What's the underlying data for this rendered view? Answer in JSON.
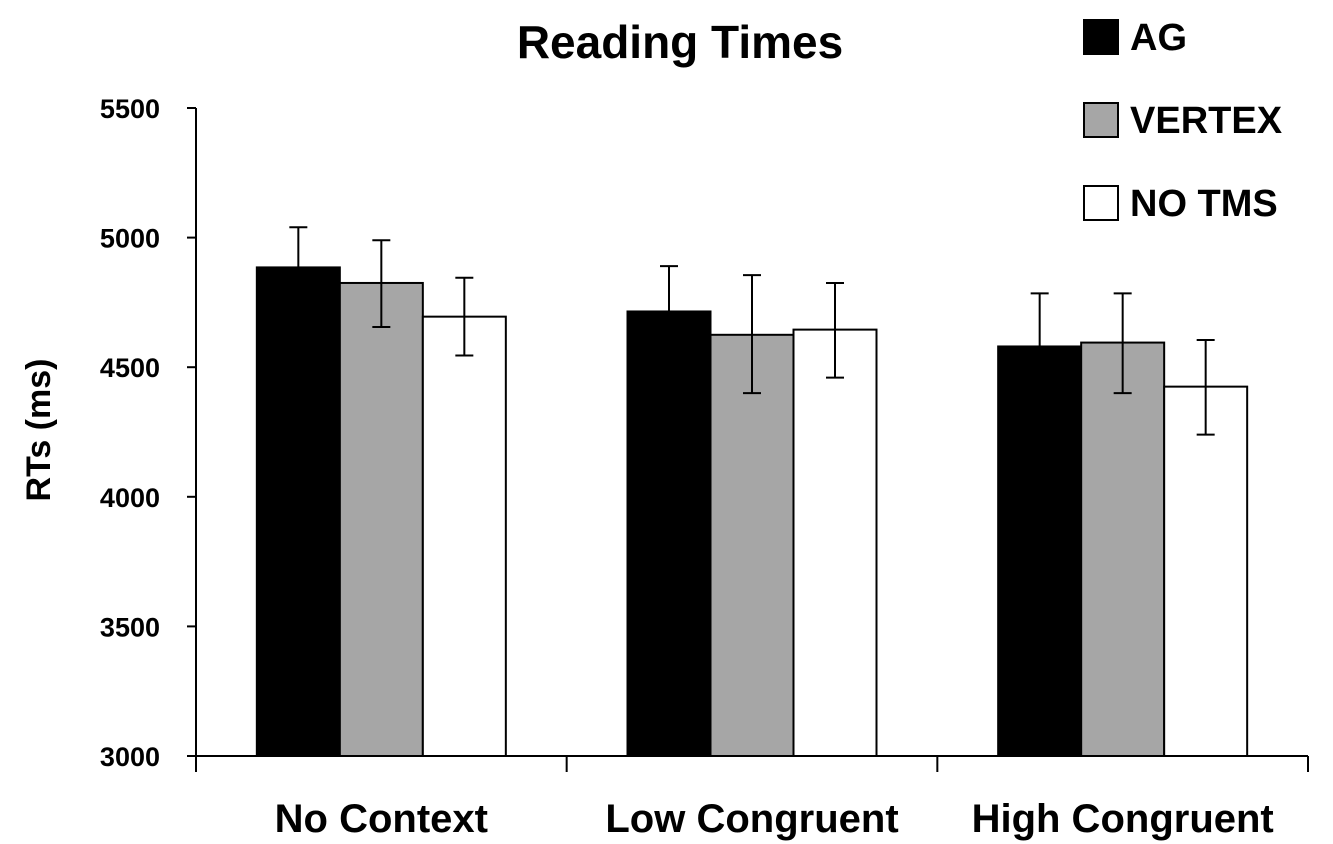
{
  "chart_data": {
    "type": "bar",
    "title": "Reading Times",
    "ylabel": "RTs (ms)",
    "xlabel": "",
    "categories": [
      "No Context",
      "Low Congruent",
      "High Congruent"
    ],
    "ylim": [
      3000,
      5500
    ],
    "yticks": [
      3000,
      3500,
      4000,
      4500,
      5000,
      5500
    ],
    "ytick_labels": [
      "3000",
      "3500",
      "4000",
      "4500",
      "5000",
      "5500"
    ],
    "legend_position": "top-right",
    "grid": false,
    "series": [
      {
        "name": "AG",
        "color": "#000000",
        "values": [
          4885,
          4715,
          4580
        ],
        "error_low": [
          4730,
          4540,
          4380
        ],
        "error_high": [
          5040,
          4890,
          4785
        ]
      },
      {
        "name": "VERTEX",
        "color": "#a6a6a6",
        "values": [
          4825,
          4625,
          4595
        ],
        "error_low": [
          4655,
          4400,
          4400
        ],
        "error_high": [
          4990,
          4855,
          4785
        ]
      },
      {
        "name": "NO TMS",
        "color": "#ffffff",
        "values": [
          4695,
          4645,
          4425
        ],
        "error_low": [
          4545,
          4460,
          4240
        ],
        "error_high": [
          4845,
          4825,
          4605
        ]
      }
    ]
  }
}
